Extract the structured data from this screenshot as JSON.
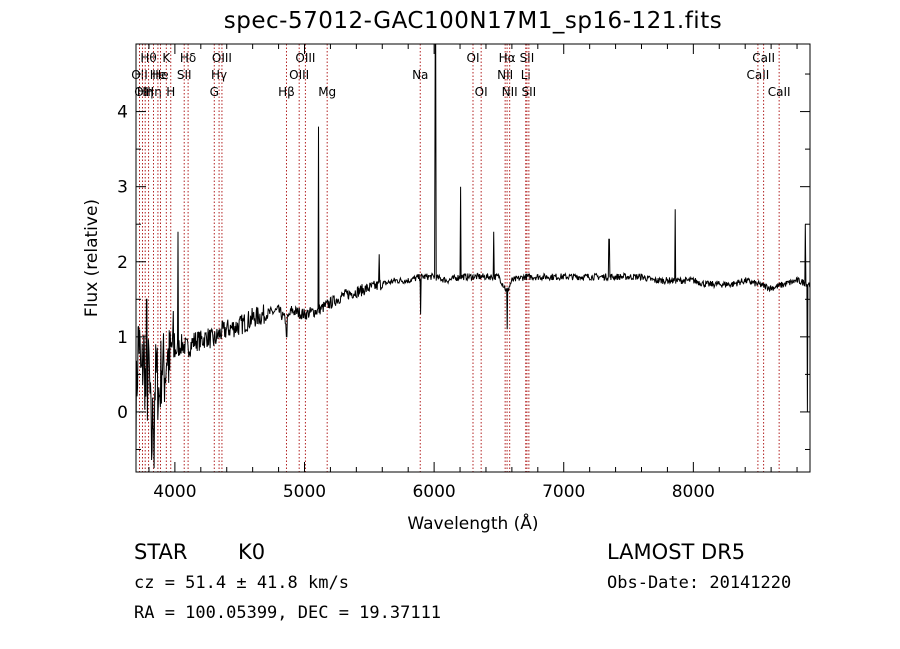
{
  "header": {
    "title": "spec-57012-GAC100N17M1_sp16-121.fits"
  },
  "info": {
    "class_label": "STAR",
    "subclass": "K0",
    "survey": "LAMOST  DR5",
    "cz": "cz = 51.4 ± 41.8 km/s",
    "obs_date": "Obs-Date: 20141220",
    "coords": "RA = 100.05399, DEC =  19.37111"
  },
  "chart_data": {
    "type": "line",
    "title": "spec-57012-GAC100N17M1_sp16-121.fits",
    "xlabel": "Wavelength (Å)",
    "ylabel": "Flux (relative)",
    "xlim": [
      3700,
      8900
    ],
    "ylim": [
      -0.8,
      4.9
    ],
    "xticks": [
      4000,
      5000,
      6000,
      7000,
      8000
    ],
    "yticks": [
      0,
      1,
      2,
      3,
      4
    ],
    "line_color": "#000000",
    "marker_color": "#b22222",
    "series": [
      {
        "x": [
          3700,
          3720,
          3740,
          3760,
          3780,
          3800,
          3820,
          3840,
          3860,
          3880,
          3900,
          3920,
          3940,
          3960,
          3980,
          4000,
          4050,
          4100,
          4150,
          4200,
          4250,
          4300,
          4350,
          4400,
          4500,
          4600,
          4700,
          4800,
          4861,
          4900,
          5000,
          5100,
          5200,
          5300,
          5400,
          5500,
          5600,
          5700,
          5800,
          5900,
          6000,
          6100,
          6200,
          6300,
          6400,
          6500,
          6563,
          6600,
          6700,
          6800,
          6900,
          7000,
          7100,
          7200,
          7300,
          7400,
          7500,
          7600,
          7700,
          7800,
          7900,
          8000,
          8100,
          8200,
          8300,
          8400,
          8500,
          8600,
          8700,
          8800,
          8900
        ],
        "y": [
          0.0,
          1.1,
          0.4,
          0.8,
          0.1,
          0.6,
          -0.5,
          0.3,
          0.5,
          0.2,
          0.7,
          0.5,
          0.8,
          0.6,
          0.9,
          0.8,
          0.9,
          0.85,
          0.95,
          0.95,
          1.0,
          0.95,
          1.05,
          1.1,
          1.15,
          1.25,
          1.3,
          1.35,
          1.2,
          1.35,
          1.3,
          1.35,
          1.45,
          1.55,
          1.6,
          1.65,
          1.7,
          1.75,
          1.75,
          1.8,
          1.8,
          1.75,
          1.8,
          1.8,
          1.8,
          1.8,
          1.6,
          1.75,
          1.8,
          1.8,
          1.8,
          1.8,
          1.8,
          1.8,
          1.8,
          1.8,
          1.8,
          1.8,
          1.75,
          1.75,
          1.75,
          1.75,
          1.7,
          1.7,
          1.7,
          1.75,
          1.7,
          1.65,
          1.7,
          1.75,
          1.7
        ]
      }
    ],
    "spikes": [
      {
        "x": 3782,
        "y": 1.5
      },
      {
        "x": 4025,
        "y": 2.4
      },
      {
        "x": 5107,
        "y": 3.8
      },
      {
        "x": 5577,
        "y": 2.1
      },
      {
        "x": 6010,
        "y": 4.9
      },
      {
        "x": 6205,
        "y": 3.0
      },
      {
        "x": 6460,
        "y": 2.4
      },
      {
        "x": 7350,
        "y": 2.3
      },
      {
        "x": 7860,
        "y": 2.7
      },
      {
        "x": 8865,
        "y": 2.5
      }
    ],
    "dips": [
      {
        "x": 3840,
        "y": -0.75
      },
      {
        "x": 4862,
        "y": 1.0
      },
      {
        "x": 5895,
        "y": 1.3
      },
      {
        "x": 6563,
        "y": 1.1
      },
      {
        "x": 8880,
        "y": 0.0
      }
    ],
    "lines": [
      {
        "x": 3727,
        "label": "OII",
        "row": 1
      },
      {
        "x": 3750,
        "label": "OII",
        "row": 2
      },
      {
        "x": 3771,
        "label": "Hη",
        "row": 2
      },
      {
        "x": 3797,
        "label": "Hθ",
        "row": 0
      },
      {
        "x": 3835,
        "label": "Hη",
        "row": 2
      },
      {
        "x": 3869,
        "label": "He",
        "row": 1
      },
      {
        "x": 3889,
        "label": "He",
        "row": 1
      },
      {
        "x": 3934,
        "label": "K",
        "row": 0
      },
      {
        "x": 3968,
        "label": "H",
        "row": 2
      },
      {
        "x": 4072,
        "label": "SII",
        "row": 1
      },
      {
        "x": 4102,
        "label": "Hδ",
        "row": 0
      },
      {
        "x": 4304,
        "label": "G",
        "row": 2
      },
      {
        "x": 4341,
        "label": "Hγ",
        "row": 1
      },
      {
        "x": 4363,
        "label": "OIII",
        "row": 0
      },
      {
        "x": 4861,
        "label": "Hβ",
        "row": 2
      },
      {
        "x": 4959,
        "label": "OIII",
        "row": 1
      },
      {
        "x": 5007,
        "label": "OIII",
        "row": 0
      },
      {
        "x": 5175,
        "label": "Mg",
        "row": 2
      },
      {
        "x": 5893,
        "label": "Na",
        "row": 1
      },
      {
        "x": 6300,
        "label": "OI",
        "row": 0
      },
      {
        "x": 6363,
        "label": "OI",
        "row": 2
      },
      {
        "x": 6548,
        "label": "NII",
        "row": 1
      },
      {
        "x": 6563,
        "label": "Hα",
        "row": 0
      },
      {
        "x": 6583,
        "label": "NII",
        "row": 2
      },
      {
        "x": 6707,
        "label": "Li",
        "row": 1
      },
      {
        "x": 6716,
        "label": "SII",
        "row": 0
      },
      {
        "x": 6731,
        "label": "SII",
        "row": 2
      },
      {
        "x": 8498,
        "label": "CaII",
        "row": 1
      },
      {
        "x": 8542,
        "label": "CaII",
        "row": 0
      },
      {
        "x": 8662,
        "label": "CaII",
        "row": 2
      }
    ]
  }
}
